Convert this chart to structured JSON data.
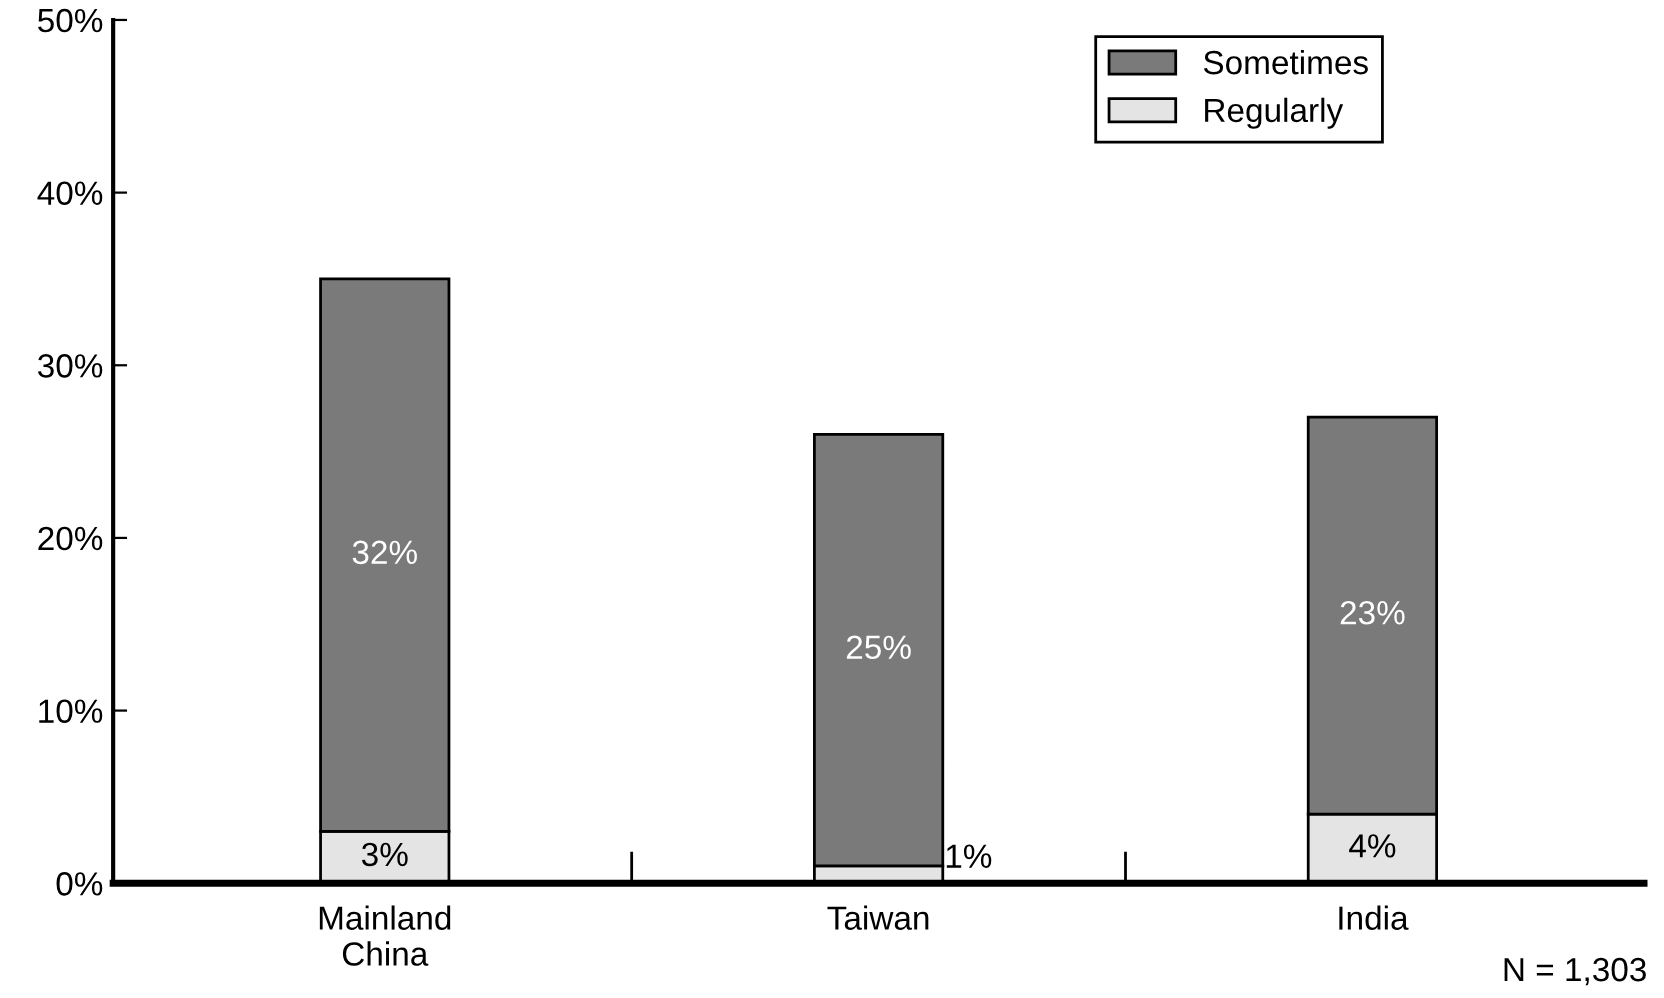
{
  "chart_data": {
    "type": "bar",
    "stacked": true,
    "categories": [
      "Mainland\nChina",
      "Taiwan",
      "India"
    ],
    "series": [
      {
        "name": "Regularly",
        "color": "#e4e4e4",
        "values": [
          3,
          1,
          4
        ],
        "value_labels": [
          "3%",
          "1%",
          "4%"
        ]
      },
      {
        "name": "Sometimes",
        "color": "#7a7a7a",
        "values": [
          32,
          25,
          23
        ],
        "value_labels": [
          "32%",
          "25%",
          "23%"
        ]
      }
    ],
    "ylim": [
      0,
      50
    ],
    "yticks": [
      {
        "value": 0,
        "label": "0%"
      },
      {
        "value": 10,
        "label": "10%"
      },
      {
        "value": 20,
        "label": "20%"
      },
      {
        "value": 30,
        "label": "30%"
      },
      {
        "value": 40,
        "label": "40%"
      },
      {
        "value": 50,
        "label": "50%"
      }
    ],
    "legend": "top right",
    "grid": false,
    "annotations": [
      "N = 1,303"
    ]
  }
}
